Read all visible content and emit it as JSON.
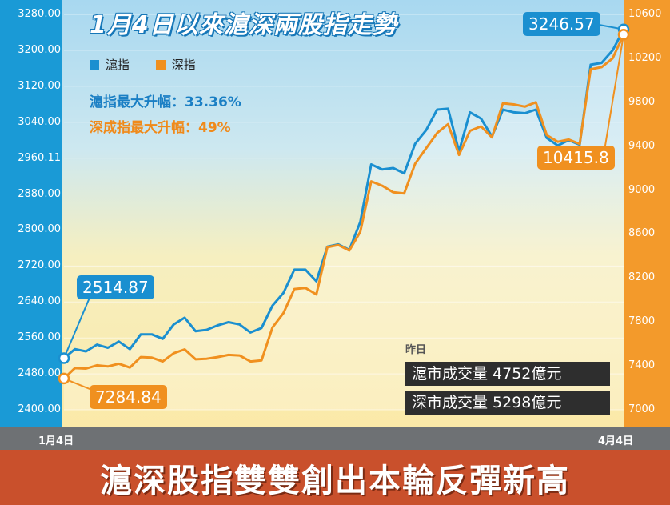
{
  "title": "1月4日以來滬深兩股指走勢",
  "headline": "滬深股指雙雙創出本輪反彈新高",
  "legend": {
    "sh_label": "滬指",
    "sz_label": "深指"
  },
  "stats": {
    "sh_line": "滬指最大升幅：33.36%",
    "sz_line": "深成指最大升幅：49%"
  },
  "callouts": {
    "sh_start": "2514.87",
    "sz_start": "7284.84",
    "sh_end": "3246.57",
    "sz_end": "10415.8"
  },
  "volume": {
    "heading": "昨日",
    "sh_row": "滬市成交量  4752億元",
    "sz_row": "深市成交量  5298億元"
  },
  "x_labels": {
    "start": "1月4日",
    "end": "4月4日"
  },
  "colors": {
    "sh": "#1a8fd0",
    "sz": "#f0901f",
    "left_axis": "#1a9ad6",
    "right_axis": "#f39a2b",
    "headline_bg": "#c9502c"
  },
  "chart_data": {
    "type": "line",
    "title": "1月4日以來滬深兩股指走勢",
    "x_range_labels": [
      "1月4日",
      "4月4日"
    ],
    "left_axis": {
      "ticks": [
        "2400.00",
        "2480.00",
        "2560.00",
        "2640.00",
        "2720.00",
        "2800.00",
        "2880.00",
        "2960.11",
        "3040.00",
        "3120.00",
        "3200.00",
        "3280.00"
      ],
      "range": [
        2400,
        3280
      ]
    },
    "right_axis": {
      "ticks": [
        "7000",
        "7400",
        "7800",
        "8200",
        "8600",
        "9000",
        "9400",
        "9800",
        "10200",
        "10600"
      ],
      "range": [
        7000,
        10600
      ]
    },
    "series": [
      {
        "name": "滬指",
        "axis": "left",
        "values": [
          2514.87,
          2535,
          2530,
          2545,
          2538,
          2552,
          2535,
          2568,
          2568,
          2558,
          2590,
          2605,
          2575,
          2578,
          2588,
          2595,
          2590,
          2572,
          2582,
          2632,
          2660,
          2712,
          2712,
          2686,
          2763,
          2768,
          2756,
          2818,
          2946,
          2935,
          2938,
          2926,
          2992,
          3022,
          3068,
          3070,
          2975,
          3062,
          3048,
          3008,
          3068,
          3062,
          3060,
          3068,
          3005,
          2988,
          3000,
          2990,
          3168,
          3172,
          3200,
          3246.57
        ]
      },
      {
        "name": "深指",
        "axis": "right",
        "values": [
          7284.84,
          7380,
          7375,
          7405,
          7395,
          7420,
          7385,
          7480,
          7475,
          7440,
          7515,
          7550,
          7460,
          7465,
          7480,
          7500,
          7495,
          7440,
          7450,
          7750,
          7880,
          8100,
          8110,
          8050,
          8480,
          8500,
          8450,
          8620,
          9080,
          9040,
          8980,
          8970,
          9240,
          9380,
          9520,
          9600,
          9320,
          9540,
          9580,
          9480,
          9790,
          9780,
          9760,
          9800,
          9500,
          9440,
          9460,
          9420,
          10100,
          10120,
          10200,
          10415.8
        ]
      }
    ]
  }
}
